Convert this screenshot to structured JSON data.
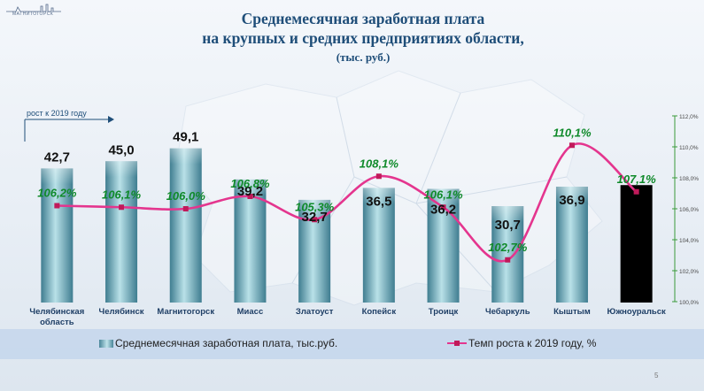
{
  "logo": {
    "icon": "city-skyline-logo",
    "text": "МАГНИТОГОРСК"
  },
  "title": {
    "line1": "Среднемесячная заработная плата",
    "line2": "на крупных и средних предприятиях области,",
    "units": "(тыс. руб.)"
  },
  "growth_axis_label": "рост к 2019 году",
  "legend": {
    "bars": "Среднемесячная заработная плата, тыс.руб.",
    "line": "Темп роста к  2019 году, %"
  },
  "page_number": "5",
  "colors": {
    "bar": "#7fb8c6",
    "highlight_bar": "#000000",
    "line": "#e4358e",
    "marker": "#c01a5a",
    "growth_label": "#0f8a2a",
    "axis_right": "#3a9a3a",
    "title": "#1f4e79"
  },
  "chart_data": {
    "type": "bar",
    "categories": [
      [
        "Челябинская",
        "область"
      ],
      [
        "Челябинск"
      ],
      [
        "Магнитогорск"
      ],
      [
        "Миасс"
      ],
      [
        "Златоуст"
      ],
      [
        "Копейск"
      ],
      [
        "Троицк"
      ],
      [
        "Чебаркуль"
      ],
      [
        "Кыштым"
      ],
      [
        "Южноуральск"
      ]
    ],
    "series": [
      {
        "name": "Среднемесячная заработная плата, тыс.руб.",
        "type": "bar",
        "values": [
          42.7,
          45.0,
          49.1,
          39.2,
          32.7,
          36.5,
          36.2,
          30.7,
          36.9,
          37.4
        ],
        "labels": [
          "42,7",
          "45,0",
          "49,1",
          "39,2",
          "32,7",
          "36,5",
          "36,2",
          "30,7",
          "36,9",
          ""
        ],
        "highlight_index": 9
      },
      {
        "name": "Темп роста к  2019 году, %",
        "type": "line",
        "values": [
          106.2,
          106.1,
          106.0,
          106.8,
          105.3,
          108.1,
          106.1,
          102.7,
          110.1,
          107.1
        ],
        "labels": [
          "106,2%",
          "106,1%",
          "106,0%",
          "106,8%",
          "105,3%",
          "108,1%",
          "106,1%",
          "102,7%",
          "110,1%",
          "107,1%"
        ]
      }
    ],
    "y2_axis": {
      "ylim": [
        100,
        112
      ],
      "ticks": [
        100,
        102,
        104,
        106,
        108,
        110,
        112
      ],
      "tick_labels": [
        "100,0%",
        "102,0%",
        "104,0%",
        "106,0%",
        "108,0%",
        "110,0%",
        "112,0%"
      ]
    },
    "grid": false,
    "legend_position": "bottom"
  }
}
